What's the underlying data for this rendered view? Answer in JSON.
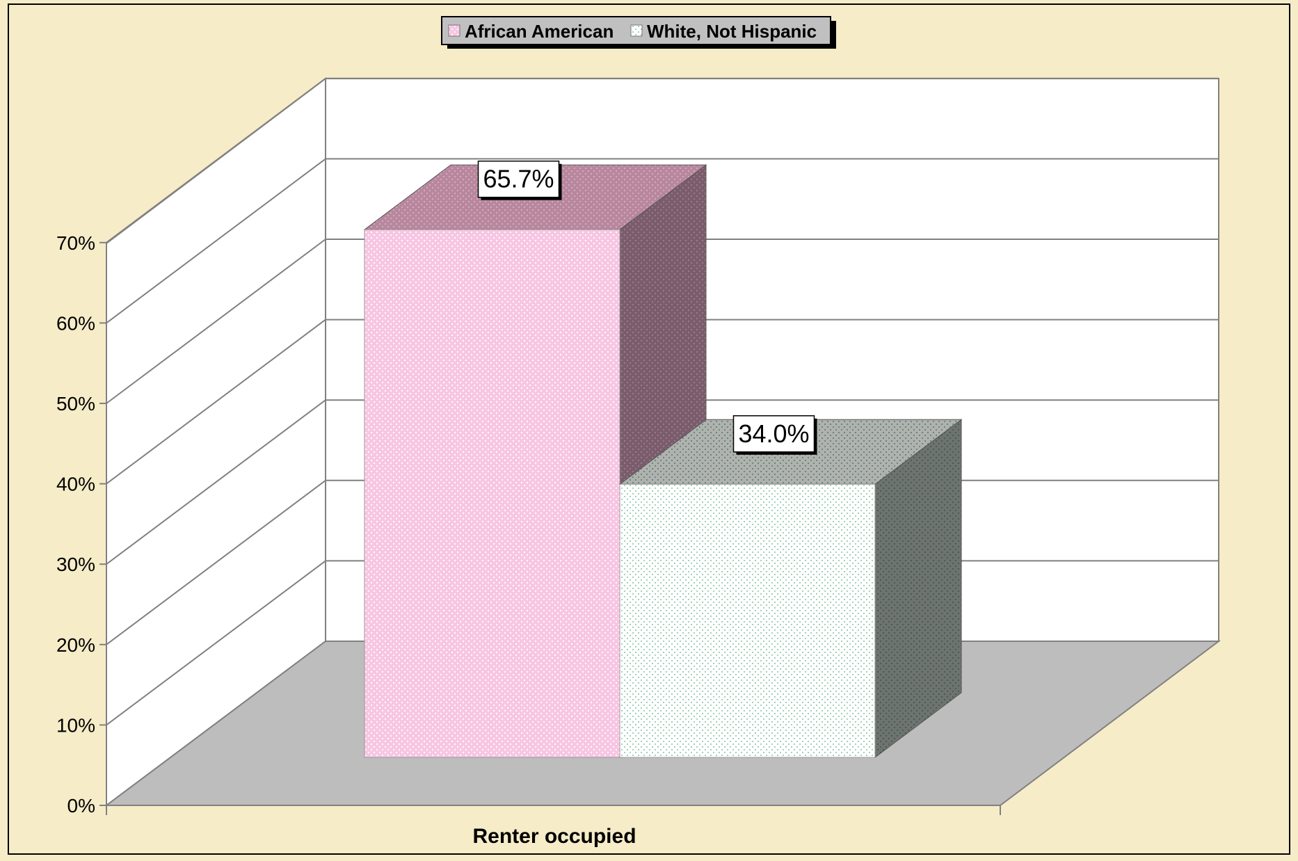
{
  "chart_data": {
    "type": "bar",
    "style": "3d-clustered",
    "categories": [
      "Renter occupied"
    ],
    "series": [
      {
        "name": "African American",
        "values": [
          65.7
        ],
        "label": "65.7%",
        "color": "#f5bfe0",
        "side_color": "#7a5c6c",
        "top_color": "#b8879e"
      },
      {
        "name": "White, Not Hispanic",
        "values": [
          34.0
        ],
        "label": "34.0%",
        "color": "#ffffff",
        "side_color": "#6f7370",
        "top_color": "#a9aca9"
      }
    ],
    "title": "",
    "xlabel": "",
    "ylabel": "",
    "ylim": [
      0,
      70
    ],
    "yticks": [
      "0%",
      "10%",
      "20%",
      "30%",
      "40%",
      "50%",
      "60%",
      "70%"
    ],
    "grid": true,
    "legend_position": "top-center",
    "data_labels": true
  },
  "colors": {
    "background": "#f6ecc8",
    "floor": "#bdbdbd",
    "walls": "#ffffff",
    "grid": "#808080"
  }
}
